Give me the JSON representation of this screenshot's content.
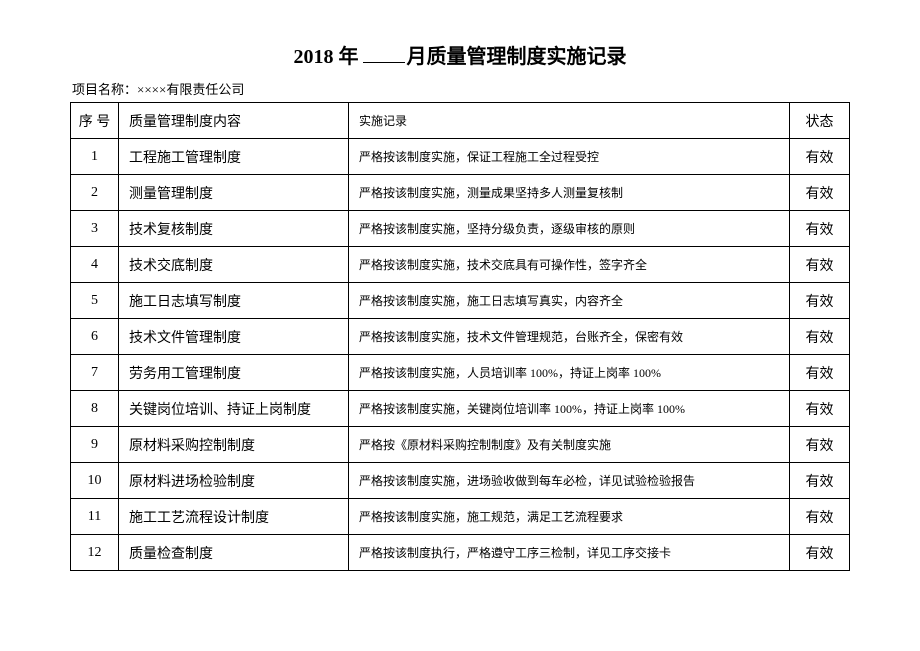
{
  "title": {
    "year_part": "2018 年",
    "month_suffix": "月质量管理制度实施记录"
  },
  "project": {
    "label": "项目名称：",
    "value": "××××有限责任公司"
  },
  "table": {
    "headers": {
      "seq": "序 号",
      "content": "质量管理制度内容",
      "record": "实施记录",
      "status": "状态"
    },
    "rows": [
      {
        "seq": "1",
        "content": "工程施工管理制度",
        "record": "严格按该制度实施，保证工程施工全过程受控",
        "status": "有效"
      },
      {
        "seq": "2",
        "content": "测量管理制度",
        "record": "严格按该制度实施，测量成果坚持多人测量复核制",
        "status": "有效"
      },
      {
        "seq": "3",
        "content": "技术复核制度",
        "record": "严格按该制度实施，坚持分级负责，逐级审核的原则",
        "status": "有效"
      },
      {
        "seq": "4",
        "content": "技术交底制度",
        "record": "严格按该制度实施，技术交底具有可操作性，签字齐全",
        "status": "有效"
      },
      {
        "seq": "5",
        "content": "施工日志填写制度",
        "record": "严格按该制度实施，施工日志填写真实，内容齐全",
        "status": "有效"
      },
      {
        "seq": "6",
        "content": "技术文件管理制度",
        "record": "严格按该制度实施，技术文件管理规范，台账齐全，保密有效",
        "status": "有效"
      },
      {
        "seq": "7",
        "content": "劳务用工管理制度",
        "record": "严格按该制度实施，人员培训率 100%，持证上岗率 100%",
        "status": "有效"
      },
      {
        "seq": "8",
        "content": "关键岗位培训、持证上岗制度",
        "record": "严格按该制度实施，关键岗位培训率 100%，持证上岗率 100%",
        "status": "有效"
      },
      {
        "seq": "9",
        "content": "原材料采购控制制度",
        "record": "严格按《原材料采购控制制度》及有关制度实施",
        "status": "有效"
      },
      {
        "seq": "10",
        "content": "原材料进场检验制度",
        "record": "严格按该制度实施，进场验收做到每车必检，详见试验检验报告",
        "status": "有效"
      },
      {
        "seq": "11",
        "content": "施工工艺流程设计制度",
        "record": "严格按该制度实施，施工规范，满足工艺流程要求",
        "status": "有效"
      },
      {
        "seq": "12",
        "content": "质量检查制度",
        "record": "严格按该制度执行，严格遵守工序三检制，详见工序交接卡",
        "status": "有效"
      }
    ]
  }
}
